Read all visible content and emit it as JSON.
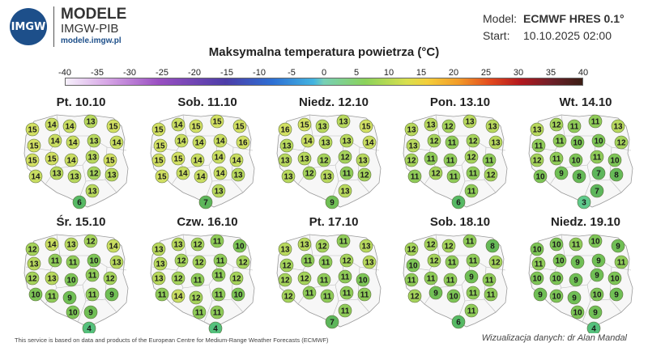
{
  "header": {
    "logo_text": "IMGW",
    "brand_line1": "MODELE",
    "brand_line2": "IMGW-PIB",
    "brand_url": "modele.imgw.pl",
    "model_label": "Model:",
    "model_value": "ECMWF HRES 0.1°",
    "start_label": "Start:",
    "start_value": "10.10.2025 02:00"
  },
  "title": "Maksymalna temperatura powietrza (°C)",
  "scale_ticks": [
    "-40",
    "-35",
    "-30",
    "-25",
    "-20",
    "-15",
    "-10",
    "-5",
    "0",
    "5",
    "10",
    "15",
    "20",
    "25",
    "30",
    "35",
    "40"
  ],
  "colors": {
    "c15": "#ccdf5f",
    "c14": "#ccdf5f",
    "c13": "#b6d95d",
    "c12": "#a3d45c",
    "c11": "#8ccd5a",
    "c10": "#79c556",
    "c9": "#6fbf55",
    "c8": "#66bb55",
    "c7": "#5bb55a",
    "c6": "#52b661",
    "c4": "#53be79",
    "c3": "#5dc98a"
  },
  "panels": [
    {
      "day": "Pt. 10.10",
      "values": [
        15,
        14,
        14,
        13,
        15,
        15,
        14,
        14,
        13,
        14,
        15,
        15,
        14,
        13,
        15,
        14,
        13,
        13,
        12,
        13,
        13,
        6
      ]
    },
    {
      "day": "Sob. 11.10",
      "values": [
        15,
        14,
        15,
        15,
        15,
        15,
        14,
        14,
        14,
        16,
        15,
        15,
        14,
        14,
        14,
        15,
        14,
        14,
        14,
        13,
        13,
        7
      ]
    },
    {
      "day": "Niedz. 12.10",
      "values": [
        16,
        15,
        13,
        13,
        15,
        13,
        14,
        13,
        13,
        14,
        13,
        13,
        12,
        12,
        13,
        13,
        12,
        13,
        11,
        12,
        13,
        9
      ]
    },
    {
      "day": "Pon. 13.10",
      "values": [
        13,
        13,
        12,
        13,
        13,
        13,
        12,
        11,
        12,
        13,
        12,
        11,
        11,
        12,
        11,
        11,
        12,
        11,
        11,
        12,
        11,
        6
      ]
    },
    {
      "day": "Wt. 14.10",
      "values": [
        13,
        12,
        11,
        11,
        13,
        11,
        11,
        10,
        10,
        12,
        12,
        11,
        10,
        11,
        10,
        10,
        9,
        8,
        7,
        8,
        7,
        3
      ]
    },
    {
      "day": "Śr. 15.10",
      "values": [
        12,
        14,
        13,
        12,
        14,
        13,
        11,
        11,
        10,
        13,
        12,
        13,
        10,
        11,
        12,
        10,
        11,
        9,
        11,
        9,
        10,
        9,
        4
      ]
    },
    {
      "day": "Czw. 16.10",
      "values": [
        13,
        13,
        12,
        11,
        10,
        13,
        12,
        12,
        11,
        12,
        13,
        12,
        11,
        11,
        12,
        11,
        14,
        12,
        11,
        10,
        11,
        11,
        4
      ]
    },
    {
      "day": "Pt. 17.10",
      "values": [
        13,
        13,
        12,
        11,
        13,
        12,
        11,
        11,
        12,
        13,
        12,
        12,
        11,
        11,
        10,
        12,
        11,
        11,
        11,
        11,
        11,
        7
      ]
    },
    {
      "day": "Sob. 18.10",
      "values": [
        12,
        12,
        12,
        11,
        8,
        10,
        12,
        11,
        11,
        12,
        11,
        11,
        11,
        9,
        11,
        12,
        9,
        10,
        11,
        11,
        11,
        6
      ]
    },
    {
      "day": "Niedz. 19.10",
      "values": [
        10,
        10,
        11,
        10,
        9,
        11,
        10,
        9,
        9,
        11,
        10,
        10,
        9,
        9,
        10,
        9,
        10,
        9,
        10,
        9,
        10,
        9,
        4
      ]
    }
  ],
  "footer_left": "This service is based on data and products of the European Centre for Medium-Range Weather Forecasts (ECMWF)",
  "footer_right": "Wizualizacja danych: dr Alan Mandal"
}
